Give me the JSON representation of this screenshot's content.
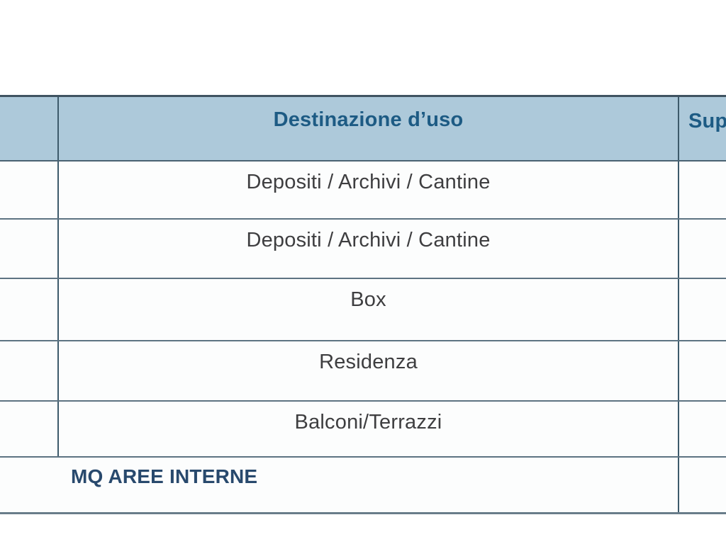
{
  "document": {
    "table": {
      "header": {
        "col_use": "Destinazione d’uso",
        "col_sup": "Sup"
      },
      "rows": [
        {
          "use": "Depositi / Archivi / Cantine"
        },
        {
          "use": "Depositi / Archivi / Cantine"
        },
        {
          "use": "Box"
        },
        {
          "use": "Residenza"
        },
        {
          "use": "Balconi/Terrazzi"
        }
      ],
      "footer": {
        "label": "MQ AREE INTERNE"
      }
    },
    "colors": {
      "header_bg": "#adc9da",
      "header_text": "#1d5b84",
      "body_text": "#3e3e40",
      "footer_text": "#28496d",
      "border_dark": "#3d5a6b",
      "border_light": "#5d7382"
    }
  }
}
